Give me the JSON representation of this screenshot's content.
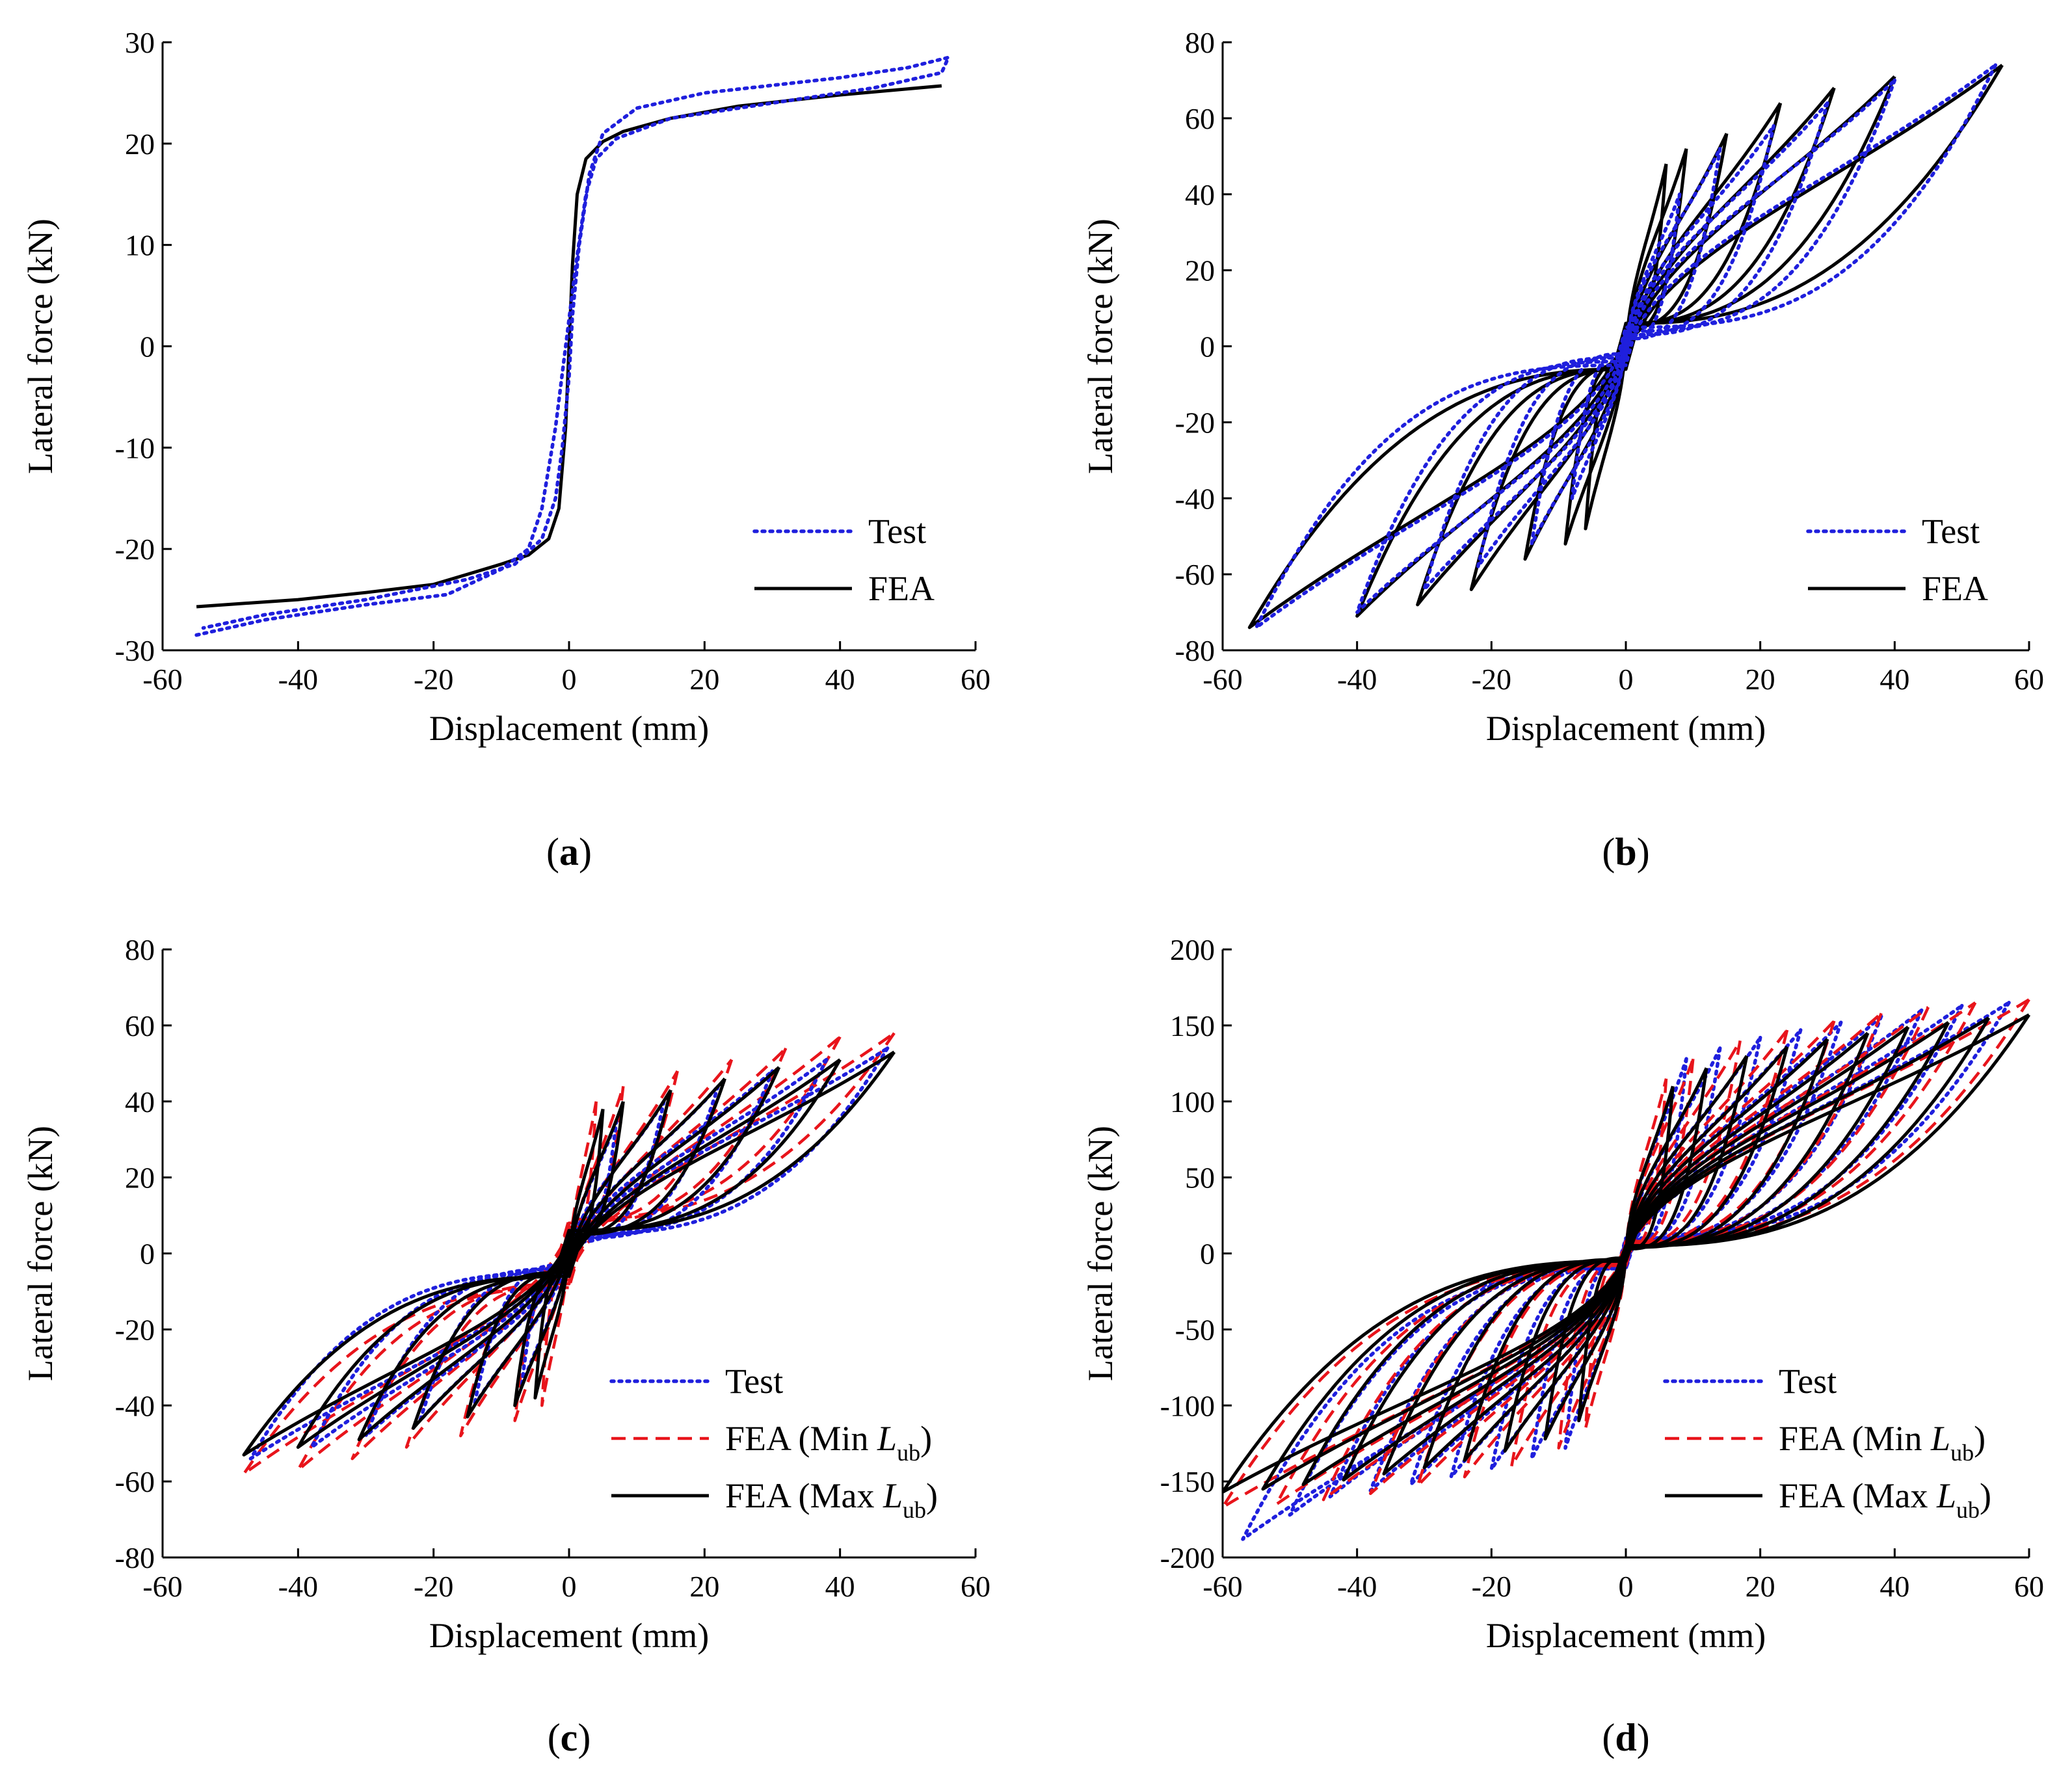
{
  "chart_data": [
    {
      "panel": "a",
      "caption": "(a)",
      "caption_letter": "a",
      "type": "line",
      "title": "",
      "xlabel": "Displacement (mm)",
      "ylabel": "Lateral force (kN)",
      "xlim": [
        -60,
        60
      ],
      "ylim": [
        -30,
        30
      ],
      "xticks": [
        -60,
        -40,
        -20,
        0,
        20,
        40,
        60
      ],
      "yticks": [
        -30,
        -20,
        -10,
        0,
        10,
        20,
        30
      ],
      "xtick_labels": [
        "-60",
        "-40",
        "-20",
        "0",
        "20",
        "40",
        "60"
      ],
      "ytick_labels": [
        "-30",
        "-20",
        "-10",
        "0",
        "10",
        "20",
        "30"
      ],
      "legend": {
        "position": "bottom-right",
        "entries": [
          {
            "label": "Test",
            "sub": "",
            "series": "test"
          },
          {
            "label": "FEA",
            "sub": "",
            "series": "fea"
          }
        ]
      },
      "series": [
        {
          "name": "Test",
          "key": "test",
          "color": "#1f1fdd",
          "dash": "dotted",
          "points": [
            [
              -55,
              -28.5
            ],
            [
              -45,
              -27
            ],
            [
              -30,
              -25.5
            ],
            [
              -18,
              -24.5
            ],
            [
              -10,
              -22
            ],
            [
              -6,
              -20
            ],
            [
              -4,
              -16
            ],
            [
              -2,
              -8
            ],
            [
              -0.5,
              0
            ],
            [
              1,
              8
            ],
            [
              2.5,
              15
            ],
            [
              4,
              18.5
            ],
            [
              7,
              20.5
            ],
            [
              15,
              22.5
            ],
            [
              30,
              24
            ],
            [
              45,
              25.5
            ],
            [
              55,
              27
            ],
            [
              56,
              28.5
            ],
            [
              50,
              27.5
            ],
            [
              40,
              26.5
            ],
            [
              20,
              25
            ],
            [
              10,
              23.5
            ],
            [
              5,
              21
            ],
            [
              3,
              17
            ],
            [
              1.5,
              10
            ],
            [
              0.5,
              3
            ],
            [
              0,
              -3
            ],
            [
              -1,
              -10
            ],
            [
              -2,
              -15
            ],
            [
              -4,
              -19
            ],
            [
              -8,
              -21.5
            ],
            [
              -15,
              -23
            ],
            [
              -30,
              -25
            ],
            [
              -45,
              -26.5
            ],
            [
              -54,
              -27.8
            ]
          ]
        },
        {
          "name": "FEA",
          "key": "fea",
          "color": "#000000",
          "dash": "solid",
          "points": [
            [
              -55,
              -25.7
            ],
            [
              -40,
              -25
            ],
            [
              -30,
              -24.3
            ],
            [
              -20,
              -23.5
            ],
            [
              -15,
              -22.5
            ],
            [
              -10,
              -21.5
            ],
            [
              -6,
              -20.6
            ],
            [
              -3,
              -19
            ],
            [
              -1.5,
              -16
            ],
            [
              -0.5,
              -8
            ],
            [
              0,
              0
            ],
            [
              0.5,
              8
            ],
            [
              1.2,
              15
            ],
            [
              2.5,
              18.5
            ],
            [
              5,
              20.2
            ],
            [
              8,
              21.2
            ],
            [
              15,
              22.5
            ],
            [
              25,
              23.7
            ],
            [
              40,
              24.8
            ],
            [
              55,
              25.7
            ]
          ]
        }
      ]
    },
    {
      "panel": "b",
      "caption": "(b)",
      "caption_letter": "b",
      "type": "line",
      "title": "",
      "xlabel": "Displacement (mm)",
      "ylabel": "Lateral force (kN)",
      "xlim": [
        -60,
        60
      ],
      "ylim": [
        -80,
        80
      ],
      "xticks": [
        -60,
        -40,
        -20,
        0,
        20,
        40,
        60
      ],
      "yticks": [
        -80,
        -60,
        -40,
        -20,
        0,
        20,
        40,
        60,
        80
      ],
      "xtick_labels": [
        "-60",
        "-40",
        "-20",
        "0",
        "20",
        "40",
        "60"
      ],
      "ytick_labels": [
        "-80",
        "-60",
        "-40",
        "-20",
        "0",
        "20",
        "40",
        "60",
        "80"
      ],
      "legend": {
        "position": "bottom-right",
        "entries": [
          {
            "label": "Test",
            "sub": "",
            "series": "test"
          },
          {
            "label": "FEA",
            "sub": "",
            "series": "fea"
          }
        ]
      },
      "cycles": [
        {
          "series": "fea",
          "amp": 56,
          "peak": 74,
          "res": 6,
          "tend": 0.3
        },
        {
          "series": "fea",
          "amp": 40,
          "peak": 71,
          "res": 6,
          "tend": 0.5
        },
        {
          "series": "fea",
          "amp": 31,
          "peak": 68,
          "res": 6,
          "tend": 0.6
        },
        {
          "series": "fea",
          "amp": 23,
          "peak": 64,
          "res": 6,
          "tend": 0.7
        },
        {
          "series": "fea",
          "amp": 15,
          "peak": 56,
          "res": 5,
          "tend": 0.8
        },
        {
          "series": "fea",
          "amp": 9,
          "peak": 52,
          "res": 4,
          "tend": 1.0
        },
        {
          "series": "fea",
          "amp": 6,
          "peak": 48,
          "res": 3,
          "tend": 1.1
        },
        {
          "series": "test",
          "amp": 55,
          "peak": 74,
          "res": 5,
          "tend": 0.7
        },
        {
          "series": "test",
          "amp": 40,
          "peak": 70,
          "res": 4,
          "tend": 0.8
        },
        {
          "series": "test",
          "amp": 30,
          "peak": 64,
          "res": 3,
          "tend": 0.9
        },
        {
          "series": "test",
          "amp": 22,
          "peak": 58,
          "res": 3,
          "tend": 1.0
        },
        {
          "series": "test",
          "amp": 14,
          "peak": 52,
          "res": 2,
          "tend": 1.1
        },
        {
          "series": "test",
          "amp": 8,
          "peak": 40,
          "res": 2,
          "tend": 1.2
        }
      ],
      "series": [
        {
          "name": "Test",
          "key": "test",
          "color": "#1f1fdd",
          "dash": "dotted"
        },
        {
          "name": "FEA",
          "key": "fea",
          "color": "#000000",
          "dash": "solid"
        }
      ]
    },
    {
      "panel": "c",
      "caption": "(c)",
      "caption_letter": "c",
      "type": "line",
      "title": "",
      "xlabel": "Displacement (mm)",
      "ylabel": "Lateral force (kN)",
      "xlim": [
        -60,
        60
      ],
      "ylim": [
        -80,
        80
      ],
      "xticks": [
        -60,
        -40,
        -20,
        0,
        20,
        40,
        60
      ],
      "yticks": [
        -80,
        -60,
        -40,
        -20,
        0,
        20,
        40,
        60,
        80
      ],
      "xtick_labels": [
        "-60",
        "-40",
        "-20",
        "0",
        "20",
        "40",
        "60"
      ],
      "ytick_labels": [
        "-80",
        "-60",
        "-40",
        "-20",
        "0",
        "20",
        "40",
        "60",
        "80"
      ],
      "legend": {
        "position": "bottom-right",
        "entries": [
          {
            "label": "Test",
            "sub": "",
            "series": "test"
          },
          {
            "label": "FEA (Min L",
            "sub": "ub",
            "series": "fea_min"
          },
          {
            "label": "FEA (Max L",
            "sub": "ub",
            "series": "fea_max"
          }
        ]
      },
      "cycles": [
        {
          "series": "fea_min",
          "amp": 48,
          "peak": 58,
          "res": 9,
          "tend": 0.4
        },
        {
          "series": "fea_min",
          "amp": 40,
          "peak": 57,
          "res": 9,
          "tend": 0.6
        },
        {
          "series": "fea_min",
          "amp": 32,
          "peak": 54,
          "res": 8,
          "tend": 0.7
        },
        {
          "series": "fea_min",
          "amp": 24,
          "peak": 51,
          "res": 8,
          "tend": 0.8
        },
        {
          "series": "fea_min",
          "amp": 16,
          "peak": 48,
          "res": 7,
          "tend": 0.9
        },
        {
          "series": "fea_min",
          "amp": 8,
          "peak": 44,
          "res": 6,
          "tend": 1.1
        },
        {
          "series": "fea_min",
          "amp": 4,
          "peak": 40,
          "res": 4,
          "tend": 1.3
        },
        {
          "series": "test",
          "amp": 47,
          "peak": 54,
          "res": 5,
          "tend": 0.7
        },
        {
          "series": "test",
          "amp": 38,
          "peak": 51,
          "res": 5,
          "tend": 0.8
        },
        {
          "series": "test",
          "amp": 30,
          "peak": 48,
          "res": 4,
          "tend": 0.9
        },
        {
          "series": "test",
          "amp": 22,
          "peak": 44,
          "res": 4,
          "tend": 1.0
        },
        {
          "series": "test",
          "amp": 14,
          "peak": 40,
          "res": 3,
          "tend": 1.1
        },
        {
          "series": "test",
          "amp": 7,
          "peak": 35,
          "res": 3,
          "tend": 1.2
        },
        {
          "series": "fea_max",
          "amp": 48,
          "peak": 53,
          "res": 6,
          "tend": 0.45
        },
        {
          "series": "fea_max",
          "amp": 40,
          "peak": 51,
          "res": 6,
          "tend": 0.6
        },
        {
          "series": "fea_max",
          "amp": 31,
          "peak": 49,
          "res": 6,
          "tend": 0.7
        },
        {
          "series": "fea_max",
          "amp": 23,
          "peak": 46,
          "res": 5,
          "tend": 0.8
        },
        {
          "series": "fea_max",
          "amp": 15,
          "peak": 43,
          "res": 5,
          "tend": 0.9
        },
        {
          "series": "fea_max",
          "amp": 8,
          "peak": 40,
          "res": 4,
          "tend": 1.1
        },
        {
          "series": "fea_max",
          "amp": 5,
          "peak": 38,
          "res": 3,
          "tend": 1.3
        }
      ],
      "series": [
        {
          "name": "Test",
          "key": "test",
          "color": "#1f1fdd",
          "dash": "dotted"
        },
        {
          "name": "FEA (Min Lub)",
          "key": "fea_min",
          "color": "#e8141b",
          "dash": "dashed"
        },
        {
          "name": "FEA (Max Lub)",
          "key": "fea_max",
          "color": "#000000",
          "dash": "solid"
        }
      ]
    },
    {
      "panel": "d",
      "caption": "(d)",
      "caption_letter": "d",
      "type": "line",
      "title": "",
      "xlabel": "Displacement (mm)",
      "ylabel": "Lateral force (kN)",
      "xlim": [
        -60,
        60
      ],
      "ylim": [
        -200,
        200
      ],
      "xticks": [
        -60,
        -40,
        -20,
        0,
        20,
        40,
        60
      ],
      "yticks": [
        -200,
        -150,
        -100,
        -50,
        0,
        50,
        100,
        150,
        200
      ],
      "xtick_labels": [
        "-60",
        "-40",
        "-20",
        "0",
        "20",
        "40",
        "60"
      ],
      "ytick_labels": [
        "-200",
        "-150",
        "-100",
        "-50",
        "0",
        "50",
        "100",
        "150",
        "200"
      ],
      "legend": {
        "position": "bottom-right",
        "entries": [
          {
            "label": "Test",
            "sub": "",
            "series": "test"
          },
          {
            "label": "FEA (Min L",
            "sub": "ub",
            "series": "fea_min"
          },
          {
            "label": "FEA (Max L",
            "sub": "ub",
            "series": "fea_max"
          }
        ]
      },
      "cycles": [
        {
          "series": "test",
          "amp": 57,
          "peak": 165,
          "res": 10,
          "tend": 0.6,
          "negPeak": -188
        },
        {
          "series": "test",
          "amp": 50,
          "peak": 163,
          "res": 10,
          "tend": 0.7,
          "negPeak": -172
        },
        {
          "series": "test",
          "amp": 44,
          "peak": 160,
          "res": 9,
          "tend": 0.75
        },
        {
          "series": "test",
          "amp": 38,
          "peak": 156,
          "res": 9,
          "tend": 0.8
        },
        {
          "series": "test",
          "amp": 32,
          "peak": 152,
          "res": 8,
          "tend": 0.85
        },
        {
          "series": "test",
          "amp": 26,
          "peak": 147,
          "res": 8,
          "tend": 0.9
        },
        {
          "series": "test",
          "amp": 20,
          "peak": 142,
          "res": 7,
          "tend": 1.0
        },
        {
          "series": "test",
          "amp": 14,
          "peak": 135,
          "res": 6,
          "tend": 1.1
        },
        {
          "series": "test",
          "amp": 9,
          "peak": 128,
          "res": 5,
          "tend": 1.2
        },
        {
          "series": "fea_min",
          "amp": 60,
          "peak": 167,
          "res": 8,
          "tend": 0.5
        },
        {
          "series": "fea_min",
          "amp": 52,
          "peak": 165,
          "res": 8,
          "tend": 0.6
        },
        {
          "series": "fea_min",
          "amp": 45,
          "peak": 162,
          "res": 8,
          "tend": 0.65
        },
        {
          "series": "fea_min",
          "amp": 38,
          "peak": 158,
          "res": 7,
          "tend": 0.7
        },
        {
          "series": "fea_min",
          "amp": 31,
          "peak": 153,
          "res": 7,
          "tend": 0.8
        },
        {
          "series": "fea_min",
          "amp": 24,
          "peak": 147,
          "res": 6,
          "tend": 0.9
        },
        {
          "series": "fea_min",
          "amp": 17,
          "peak": 140,
          "res": 6,
          "tend": 1.0
        },
        {
          "series": "fea_min",
          "amp": 10,
          "peak": 128,
          "res": 5,
          "tend": 1.2
        },
        {
          "series": "fea_min",
          "amp": 6,
          "peak": 115,
          "res": 4,
          "tend": 1.3
        },
        {
          "series": "fea_max",
          "amp": 60,
          "peak": 157,
          "res": 5,
          "tend": 0.45
        },
        {
          "series": "fea_max",
          "amp": 54,
          "peak": 155,
          "res": 5,
          "tend": 0.55
        },
        {
          "series": "fea_max",
          "amp": 48,
          "peak": 152,
          "res": 5,
          "tend": 0.6
        },
        {
          "series": "fea_max",
          "amp": 42,
          "peak": 149,
          "res": 5,
          "tend": 0.65
        },
        {
          "series": "fea_max",
          "amp": 36,
          "peak": 145,
          "res": 5,
          "tend": 0.7
        },
        {
          "series": "fea_max",
          "amp": 30,
          "peak": 141,
          "res": 4,
          "tend": 0.8
        },
        {
          "series": "fea_max",
          "amp": 24,
          "peak": 136,
          "res": 4,
          "tend": 0.85
        },
        {
          "series": "fea_max",
          "amp": 18,
          "peak": 130,
          "res": 4,
          "tend": 0.95
        },
        {
          "series": "fea_max",
          "amp": 12,
          "peak": 122,
          "res": 3,
          "tend": 1.05
        },
        {
          "series": "fea_max",
          "amp": 7,
          "peak": 110,
          "res": 3,
          "tend": 1.2
        }
      ],
      "series": [
        {
          "name": "Test",
          "key": "test",
          "color": "#1f1fdd",
          "dash": "dotted"
        },
        {
          "name": "FEA (Min Lub)",
          "key": "fea_min",
          "color": "#e8141b",
          "dash": "dashed"
        },
        {
          "name": "FEA (Max Lub)",
          "key": "fea_max",
          "color": "#000000",
          "dash": "solid"
        }
      ]
    }
  ]
}
